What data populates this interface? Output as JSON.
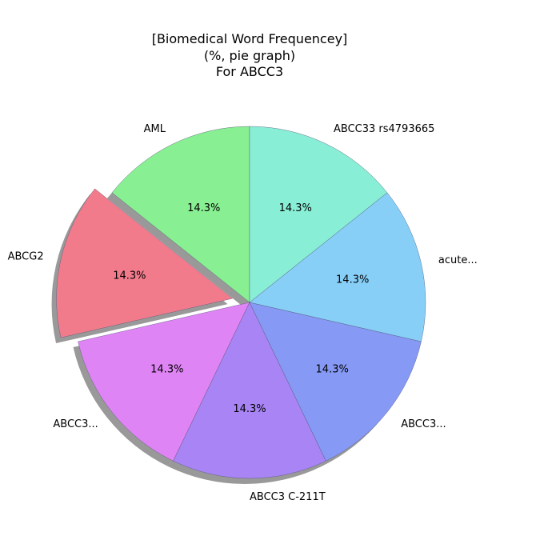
{
  "chart_data": {
    "type": "pie",
    "title_lines": [
      "[Biomedical Word Frequencey]",
      "(%, pie graph)",
      "For ABCC3"
    ],
    "labels": [
      "AML",
      "ABCG2",
      "ABCC3...",
      "ABCC3 C-211T",
      "ABCC3...",
      "acute...",
      "ABCC33 rs4793665"
    ],
    "values": [
      14.3,
      14.3,
      14.3,
      14.3,
      14.3,
      14.3,
      14.3
    ],
    "value_labels": [
      "14.3%",
      "14.3%",
      "14.3%",
      "14.3%",
      "14.3%",
      "14.3%",
      "14.3%"
    ],
    "colors": [
      "#88ef92",
      "#f27b8b",
      "#df84f4",
      "#a884f5",
      "#8599f5",
      "#87cff7",
      "#88eed6"
    ],
    "explode": [
      0,
      1,
      0,
      0,
      0,
      0,
      0
    ],
    "start_angle_deg": 90,
    "direction": "counterclockwise",
    "shadow": true
  }
}
